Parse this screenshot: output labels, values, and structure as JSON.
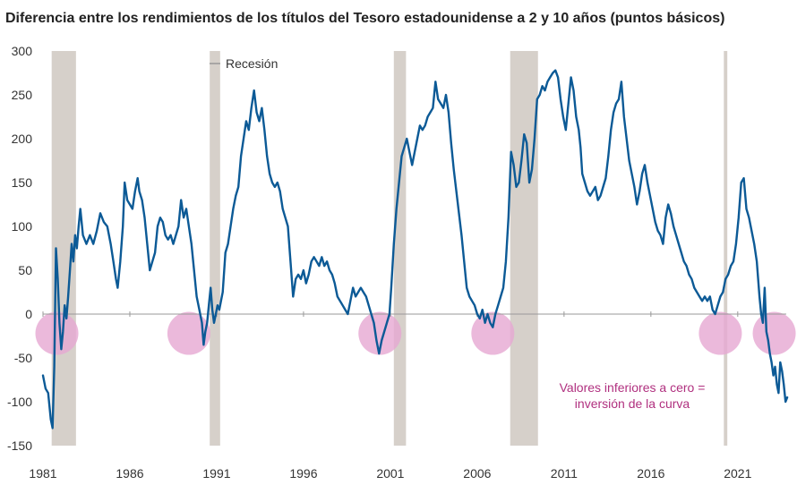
{
  "chart_data": {
    "type": "line",
    "title": "Diferencia entre los rendimientos de los títulos del Tesoro estadounidense a 2 y 10 años (puntos básicos)",
    "xlabel": "",
    "ylabel": "",
    "x_range": [
      1981.0,
      2024.0
    ],
    "ylim": [
      -150,
      300
    ],
    "y_ticks": [
      300,
      250,
      200,
      150,
      100,
      50,
      0,
      -50,
      -100,
      -150
    ],
    "x_ticks": [
      "1981",
      "1986",
      "1991",
      "1996",
      "2001",
      "2006",
      "2011",
      "2016",
      "2021"
    ],
    "legend": {
      "label": "Recesión",
      "placement": "top-center"
    },
    "annotation": {
      "lines": [
        "Valores inferiores a cero =",
        "inversión de la curva"
      ]
    },
    "colors": {
      "line": "#0c5a96",
      "recession": "#d6d0ca",
      "circle": "#e6a8d2",
      "annotation": "#b0307f",
      "axis": "#999999"
    },
    "recessions": [
      [
        1981.5,
        1982.9
      ],
      [
        1990.6,
        1991.2
      ],
      [
        2001.2,
        2001.9
      ],
      [
        2007.9,
        2009.5
      ],
      [
        2020.2,
        2020.4
      ]
    ],
    "inversion_markers": [
      1981.8,
      1989.4,
      2000.4,
      2006.9,
      2020.0,
      2023.1
    ],
    "series": [
      {
        "values": [
          [
            1981.0,
            -70
          ],
          [
            1981.15,
            -85
          ],
          [
            1981.3,
            -90
          ],
          [
            1981.45,
            -120
          ],
          [
            1981.55,
            -130
          ],
          [
            1981.65,
            -60
          ],
          [
            1981.75,
            75
          ],
          [
            1981.85,
            40
          ],
          [
            1981.95,
            -10
          ],
          [
            1982.05,
            -40
          ],
          [
            1982.15,
            -20
          ],
          [
            1982.25,
            10
          ],
          [
            1982.35,
            -5
          ],
          [
            1982.45,
            20
          ],
          [
            1982.55,
            50
          ],
          [
            1982.65,
            80
          ],
          [
            1982.75,
            60
          ],
          [
            1982.85,
            90
          ],
          [
            1982.95,
            75
          ],
          [
            1983.05,
            100
          ],
          [
            1983.15,
            120
          ],
          [
            1983.3,
            90
          ],
          [
            1983.5,
            80
          ],
          [
            1983.7,
            90
          ],
          [
            1983.9,
            80
          ],
          [
            1984.1,
            95
          ],
          [
            1984.3,
            115
          ],
          [
            1984.5,
            105
          ],
          [
            1984.7,
            100
          ],
          [
            1984.9,
            80
          ],
          [
            1985.05,
            60
          ],
          [
            1985.2,
            40
          ],
          [
            1985.3,
            30
          ],
          [
            1985.45,
            60
          ],
          [
            1985.6,
            100
          ],
          [
            1985.7,
            150
          ],
          [
            1985.85,
            130
          ],
          [
            1986.0,
            125
          ],
          [
            1986.15,
            120
          ],
          [
            1986.3,
            140
          ],
          [
            1986.45,
            155
          ],
          [
            1986.55,
            140
          ],
          [
            1986.7,
            130
          ],
          [
            1986.85,
            110
          ],
          [
            1987.0,
            80
          ],
          [
            1987.15,
            50
          ],
          [
            1987.3,
            60
          ],
          [
            1987.45,
            70
          ],
          [
            1987.6,
            100
          ],
          [
            1987.75,
            110
          ],
          [
            1987.9,
            105
          ],
          [
            1988.05,
            90
          ],
          [
            1988.2,
            85
          ],
          [
            1988.35,
            90
          ],
          [
            1988.5,
            80
          ],
          [
            1988.65,
            90
          ],
          [
            1988.8,
            100
          ],
          [
            1988.95,
            130
          ],
          [
            1989.1,
            110
          ],
          [
            1989.25,
            120
          ],
          [
            1989.4,
            100
          ],
          [
            1989.55,
            80
          ],
          [
            1989.7,
            50
          ],
          [
            1989.85,
            20
          ],
          [
            1990.0,
            5
          ],
          [
            1990.15,
            -10
          ],
          [
            1990.25,
            -35
          ],
          [
            1990.35,
            -20
          ],
          [
            1990.45,
            -10
          ],
          [
            1990.55,
            10
          ],
          [
            1990.65,
            30
          ],
          [
            1990.75,
            5
          ],
          [
            1990.85,
            -10
          ],
          [
            1990.95,
            0
          ],
          [
            1991.05,
            10
          ],
          [
            1991.15,
            5
          ],
          [
            1991.25,
            15
          ],
          [
            1991.35,
            25
          ],
          [
            1991.5,
            70
          ],
          [
            1991.65,
            80
          ],
          [
            1991.8,
            100
          ],
          [
            1991.95,
            120
          ],
          [
            1992.1,
            135
          ],
          [
            1992.25,
            145
          ],
          [
            1992.4,
            180
          ],
          [
            1992.55,
            200
          ],
          [
            1992.7,
            220
          ],
          [
            1992.85,
            210
          ],
          [
            1993.0,
            235
          ],
          [
            1993.15,
            255
          ],
          [
            1993.3,
            230
          ],
          [
            1993.45,
            220
          ],
          [
            1993.6,
            235
          ],
          [
            1993.75,
            210
          ],
          [
            1993.9,
            180
          ],
          [
            1994.05,
            160
          ],
          [
            1994.2,
            150
          ],
          [
            1994.35,
            145
          ],
          [
            1994.5,
            150
          ],
          [
            1994.65,
            140
          ],
          [
            1994.8,
            120
          ],
          [
            1994.95,
            110
          ],
          [
            1995.1,
            100
          ],
          [
            1995.25,
            60
          ],
          [
            1995.4,
            20
          ],
          [
            1995.55,
            40
          ],
          [
            1995.7,
            45
          ],
          [
            1995.85,
            40
          ],
          [
            1996.0,
            50
          ],
          [
            1996.15,
            35
          ],
          [
            1996.3,
            45
          ],
          [
            1996.45,
            60
          ],
          [
            1996.6,
            65
          ],
          [
            1996.75,
            60
          ],
          [
            1996.9,
            55
          ],
          [
            1997.05,
            65
          ],
          [
            1997.2,
            55
          ],
          [
            1997.35,
            60
          ],
          [
            1997.5,
            50
          ],
          [
            1997.65,
            45
          ],
          [
            1997.8,
            35
          ],
          [
            1997.95,
            20
          ],
          [
            1998.1,
            15
          ],
          [
            1998.25,
            10
          ],
          [
            1998.4,
            5
          ],
          [
            1998.55,
            0
          ],
          [
            1998.7,
            15
          ],
          [
            1998.85,
            30
          ],
          [
            1999.0,
            20
          ],
          [
            1999.15,
            25
          ],
          [
            1999.3,
            30
          ],
          [
            1999.45,
            25
          ],
          [
            1999.6,
            20
          ],
          [
            1999.75,
            10
          ],
          [
            1999.9,
            0
          ],
          [
            2000.05,
            -10
          ],
          [
            2000.2,
            -30
          ],
          [
            2000.35,
            -45
          ],
          [
            2000.5,
            -30
          ],
          [
            2000.65,
            -20
          ],
          [
            2000.8,
            -10
          ],
          [
            2000.95,
            0
          ],
          [
            2001.05,
            30
          ],
          [
            2001.2,
            80
          ],
          [
            2001.35,
            120
          ],
          [
            2001.5,
            150
          ],
          [
            2001.65,
            180
          ],
          [
            2001.8,
            190
          ],
          [
            2001.95,
            200
          ],
          [
            2002.1,
            185
          ],
          [
            2002.25,
            170
          ],
          [
            2002.4,
            185
          ],
          [
            2002.55,
            200
          ],
          [
            2002.7,
            215
          ],
          [
            2002.85,
            210
          ],
          [
            2003.0,
            215
          ],
          [
            2003.15,
            225
          ],
          [
            2003.3,
            230
          ],
          [
            2003.45,
            235
          ],
          [
            2003.6,
            265
          ],
          [
            2003.75,
            245
          ],
          [
            2003.9,
            240
          ],
          [
            2004.05,
            235
          ],
          [
            2004.2,
            250
          ],
          [
            2004.35,
            230
          ],
          [
            2004.5,
            195
          ],
          [
            2004.65,
            165
          ],
          [
            2004.8,
            140
          ],
          [
            2004.95,
            115
          ],
          [
            2005.1,
            90
          ],
          [
            2005.25,
            60
          ],
          [
            2005.4,
            30
          ],
          [
            2005.55,
            20
          ],
          [
            2005.7,
            15
          ],
          [
            2005.85,
            10
          ],
          [
            2006.0,
            0
          ],
          [
            2006.15,
            -5
          ],
          [
            2006.3,
            5
          ],
          [
            2006.45,
            -10
          ],
          [
            2006.6,
            0
          ],
          [
            2006.75,
            -10
          ],
          [
            2006.9,
            -15
          ],
          [
            2007.05,
            0
          ],
          [
            2007.2,
            10
          ],
          [
            2007.35,
            20
          ],
          [
            2007.5,
            30
          ],
          [
            2007.65,
            60
          ],
          [
            2007.8,
            110
          ],
          [
            2007.95,
            185
          ],
          [
            2008.1,
            170
          ],
          [
            2008.25,
            145
          ],
          [
            2008.4,
            150
          ],
          [
            2008.55,
            175
          ],
          [
            2008.7,
            205
          ],
          [
            2008.85,
            195
          ],
          [
            2009.0,
            150
          ],
          [
            2009.15,
            165
          ],
          [
            2009.3,
            200
          ],
          [
            2009.45,
            245
          ],
          [
            2009.6,
            250
          ],
          [
            2009.75,
            260
          ],
          [
            2009.9,
            255
          ],
          [
            2010.05,
            265
          ],
          [
            2010.2,
            270
          ],
          [
            2010.35,
            275
          ],
          [
            2010.5,
            278
          ],
          [
            2010.65,
            270
          ],
          [
            2010.8,
            245
          ],
          [
            2010.95,
            225
          ],
          [
            2011.1,
            210
          ],
          [
            2011.25,
            240
          ],
          [
            2011.4,
            270
          ],
          [
            2011.55,
            255
          ],
          [
            2011.7,
            225
          ],
          [
            2011.85,
            210
          ],
          [
            2011.95,
            190
          ],
          [
            2012.05,
            160
          ],
          [
            2012.2,
            150
          ],
          [
            2012.35,
            140
          ],
          [
            2012.5,
            135
          ],
          [
            2012.65,
            140
          ],
          [
            2012.8,
            145
          ],
          [
            2012.95,
            130
          ],
          [
            2013.1,
            135
          ],
          [
            2013.25,
            145
          ],
          [
            2013.4,
            155
          ],
          [
            2013.55,
            180
          ],
          [
            2013.7,
            210
          ],
          [
            2013.85,
            230
          ],
          [
            2014.0,
            240
          ],
          [
            2014.15,
            245
          ],
          [
            2014.3,
            265
          ],
          [
            2014.45,
            225
          ],
          [
            2014.6,
            200
          ],
          [
            2014.75,
            175
          ],
          [
            2014.9,
            160
          ],
          [
            2015.05,
            145
          ],
          [
            2015.2,
            125
          ],
          [
            2015.35,
            140
          ],
          [
            2015.5,
            160
          ],
          [
            2015.65,
            170
          ],
          [
            2015.8,
            150
          ],
          [
            2015.95,
            135
          ],
          [
            2016.1,
            120
          ],
          [
            2016.25,
            105
          ],
          [
            2016.4,
            95
          ],
          [
            2016.55,
            90
          ],
          [
            2016.7,
            80
          ],
          [
            2016.85,
            110
          ],
          [
            2017.0,
            125
          ],
          [
            2017.15,
            115
          ],
          [
            2017.3,
            100
          ],
          [
            2017.45,
            90
          ],
          [
            2017.6,
            80
          ],
          [
            2017.75,
            70
          ],
          [
            2017.9,
            60
          ],
          [
            2018.05,
            55
          ],
          [
            2018.2,
            45
          ],
          [
            2018.35,
            40
          ],
          [
            2018.5,
            30
          ],
          [
            2018.65,
            25
          ],
          [
            2018.8,
            20
          ],
          [
            2018.95,
            15
          ],
          [
            2019.1,
            20
          ],
          [
            2019.25,
            15
          ],
          [
            2019.4,
            20
          ],
          [
            2019.55,
            5
          ],
          [
            2019.7,
            0
          ],
          [
            2019.85,
            10
          ],
          [
            2020.0,
            20
          ],
          [
            2020.15,
            25
          ],
          [
            2020.3,
            40
          ],
          [
            2020.45,
            45
          ],
          [
            2020.6,
            55
          ],
          [
            2020.75,
            60
          ],
          [
            2020.9,
            80
          ],
          [
            2021.05,
            110
          ],
          [
            2021.2,
            150
          ],
          [
            2021.35,
            155
          ],
          [
            2021.5,
            120
          ],
          [
            2021.65,
            110
          ],
          [
            2021.8,
            95
          ],
          [
            2021.95,
            80
          ],
          [
            2022.1,
            60
          ],
          [
            2022.25,
            20
          ],
          [
            2022.35,
            0
          ],
          [
            2022.45,
            -10
          ],
          [
            2022.55,
            30
          ],
          [
            2022.65,
            -20
          ],
          [
            2022.75,
            -30
          ],
          [
            2022.85,
            -45
          ],
          [
            2022.95,
            -55
          ],
          [
            2023.05,
            -70
          ],
          [
            2023.15,
            -60
          ],
          [
            2023.25,
            -80
          ],
          [
            2023.35,
            -90
          ],
          [
            2023.45,
            -55
          ],
          [
            2023.55,
            -65
          ],
          [
            2023.65,
            -80
          ],
          [
            2023.75,
            -100
          ],
          [
            2023.85,
            -95
          ]
        ]
      }
    ]
  }
}
